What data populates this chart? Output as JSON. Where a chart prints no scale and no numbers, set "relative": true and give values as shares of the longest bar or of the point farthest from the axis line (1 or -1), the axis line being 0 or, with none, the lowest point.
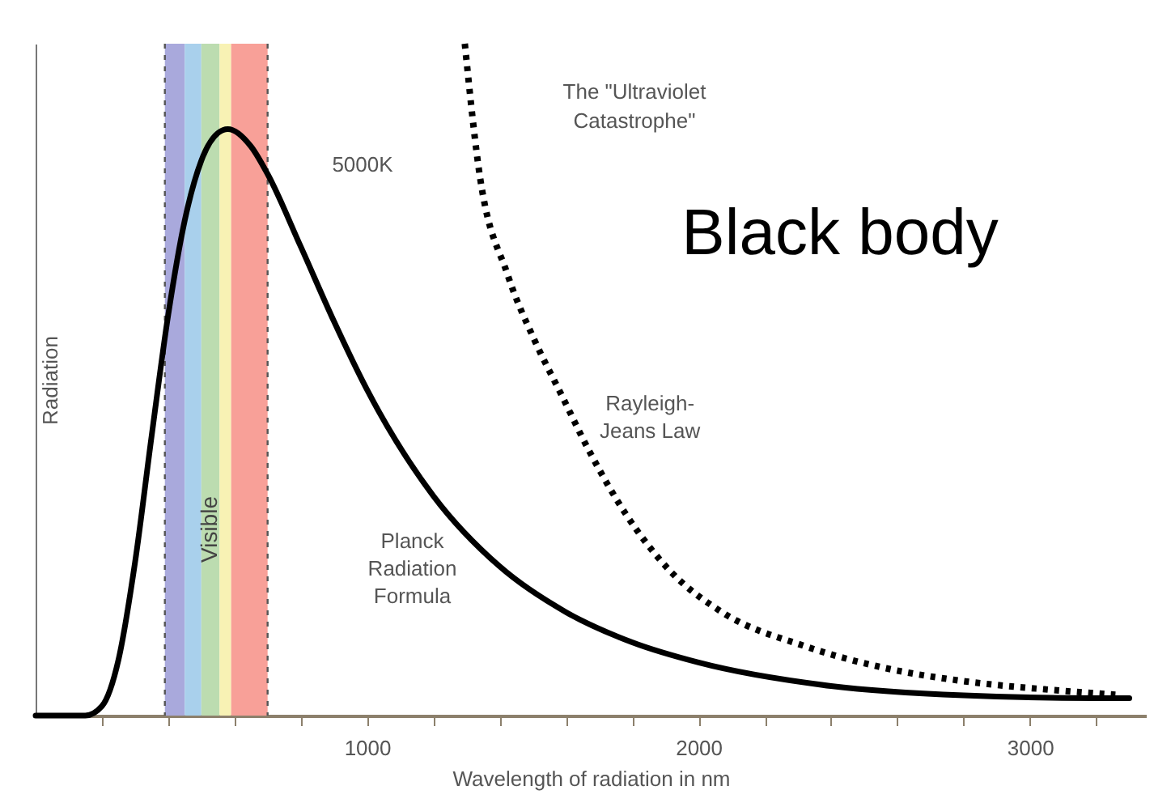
{
  "chart_data": {
    "type": "line",
    "title": "Black body",
    "xlabel": "Wavelength of radiation in nm",
    "ylabel": "Radiation",
    "relative": true,
    "xlim": [
      0,
      3350
    ],
    "xticks": [
      {
        "value": 200,
        "label": null
      },
      {
        "value": 400,
        "label": null
      },
      {
        "value": 600,
        "label": null
      },
      {
        "value": 800,
        "label": null
      },
      1000,
      {
        "value": 1200,
        "label": null
      },
      {
        "value": 1400,
        "label": null
      },
      {
        "value": 1600,
        "label": null
      },
      {
        "value": 1800,
        "label": null
      },
      2000,
      {
        "value": 2200,
        "label": null
      },
      {
        "value": 2400,
        "label": null
      },
      {
        "value": 2600,
        "label": null
      },
      {
        "value": 2800,
        "label": null
      },
      3000,
      {
        "value": 3200,
        "label": null
      }
    ],
    "series": [
      {
        "name": "Planck Radiation Formula",
        "color": "#000000",
        "line_style": "solid",
        "x": [
          0,
          100,
          150,
          200,
          250,
          300,
          350,
          400,
          450,
          500,
          550,
          580,
          650,
          700,
          800,
          900,
          1000,
          1200,
          1400,
          1600,
          1800,
          2000,
          2400,
          2800,
          3200,
          3300
        ],
        "values": [
          0,
          0,
          0,
          0.014,
          0.083,
          0.228,
          0.416,
          0.596,
          0.737,
          0.826,
          0.867,
          0.873,
          0.847,
          0.806,
          0.698,
          0.587,
          0.485,
          0.327,
          0.222,
          0.154,
          0.109,
          0.079,
          0.044,
          0.03,
          0.026,
          0.026
        ]
      },
      {
        "name": "Rayleigh-Jeans Law",
        "color": "#000000",
        "line_style": "dotted",
        "x": [
          1295,
          1336,
          1425,
          1506,
          1587,
          1668,
          1782,
          1911,
          2074,
          2317,
          2561,
          2804,
          3047,
          3258
        ],
        "values": [
          1,
          0.818,
          0.655,
          0.558,
          0.477,
          0.396,
          0.299,
          0.217,
          0.153,
          0.104,
          0.071,
          0.051,
          0.039,
          0.031
        ]
      }
    ],
    "bands": [
      {
        "axis": "x",
        "from": 390,
        "to": 450,
        "color": "#a9a9dc"
      },
      {
        "axis": "x",
        "from": 450,
        "to": 500,
        "color": "#a9d0ec"
      },
      {
        "axis": "x",
        "from": 500,
        "to": 555,
        "color": "#bcdcb0",
        "label": "Visible"
      },
      {
        "axis": "x",
        "from": 555,
        "to": 590,
        "color": "#f8f2b4"
      },
      {
        "axis": "x",
        "from": 590,
        "to": 700,
        "color": "#f8a098"
      }
    ],
    "ref_lines": [
      {
        "axis": "x",
        "value": 390,
        "color": "#555555",
        "line_style": "dotted"
      },
      {
        "axis": "x",
        "value": 700,
        "color": "#555555",
        "line_style": "dotted"
      }
    ],
    "annotations": [
      "5000K",
      "The \"Ultraviolet Catastrophe\""
    ],
    "grid": false
  }
}
